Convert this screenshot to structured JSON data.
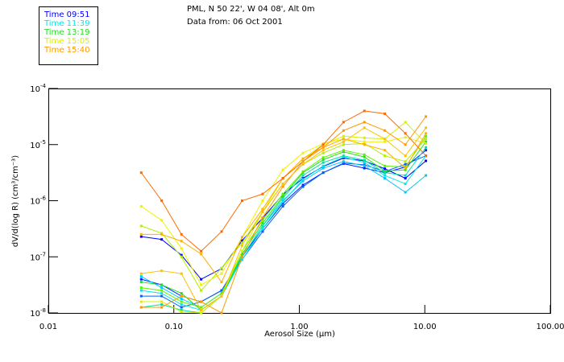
{
  "header": {
    "title": "PML, N 50 22', W 04 08', Alt 0m",
    "subtitle": "Data from: 06 Oct 2001"
  },
  "legend": [
    {
      "label": "Time 09:51",
      "color": "#0000ff"
    },
    {
      "label": "Time 11:39",
      "color": "#00e8e8"
    },
    {
      "label": "Time 13:19",
      "color": "#20e020"
    },
    {
      "label": "Time 15:05",
      "color": "#d8f000"
    },
    {
      "label": "Time 15:40",
      "color": "#ff9900"
    }
  ],
  "chart_data": {
    "type": "line",
    "xscale": "log",
    "yscale": "log",
    "xlabel": "Aerosol Size (µm)",
    "ylabel": "dV/d(log R) (cm³/cm⁻³)",
    "xlim": [
      0.01,
      100
    ],
    "ylim": [
      1e-08,
      0.0001
    ],
    "xticks": [
      "0.01",
      "0.10",
      "1.00",
      "10.00",
      "100.00"
    ],
    "yticks": [
      {
        "base": "10",
        "exp": "-4"
      },
      {
        "base": "10",
        "exp": "-5"
      },
      {
        "base": "10",
        "exp": "-6"
      },
      {
        "base": "10",
        "exp": "-7"
      },
      {
        "base": "10",
        "exp": "-8"
      }
    ],
    "x": [
      0.055,
      0.08,
      0.115,
      0.165,
      0.24,
      0.35,
      0.51,
      0.74,
      1.07,
      1.55,
      2.25,
      3.3,
      4.8,
      7.0,
      10.2
    ],
    "series_note": "values given as log10(dV/dlogR)",
    "series": [
      {
        "color": "#0000ff",
        "log10_values": [
          -6.64,
          -6.69,
          -6.97,
          -7.4,
          -7.21,
          -6.71,
          -6.31,
          -5.89,
          -5.6,
          -5.39,
          -5.24,
          -5.29,
          -5.43,
          -5.6,
          -5.29
        ]
      },
      {
        "color": "#0020ff",
        "log10_values": [
          -7.4,
          -7.5,
          -7.7,
          -7.8,
          -7.6,
          -7.0,
          -6.5,
          -6.05,
          -5.72,
          -5.5,
          -5.34,
          -5.42,
          -5.5,
          -5.4,
          -5.1
        ]
      },
      {
        "color": "#0060ff",
        "log10_values": [
          -7.7,
          -7.7,
          -7.9,
          -7.8,
          -7.6,
          -7.05,
          -6.55,
          -6.1,
          -5.75,
          -5.5,
          -5.33,
          -5.36,
          -5.48,
          -5.35,
          -5.2
        ]
      },
      {
        "color": "#00c8ff",
        "log10_values": [
          -7.35,
          -7.55,
          -7.75,
          -7.9,
          -7.65,
          -7.0,
          -6.45,
          -6.0,
          -5.65,
          -5.42,
          -5.3,
          -5.38,
          -5.6,
          -5.85,
          -5.55
        ]
      },
      {
        "color": "#00e8e8",
        "log10_values": [
          -7.6,
          -7.65,
          -7.85,
          -7.95,
          -7.7,
          -7.05,
          -6.5,
          -6.02,
          -5.62,
          -5.38,
          -5.22,
          -5.32,
          -5.55,
          -5.7,
          -5.2
        ]
      },
      {
        "color": "#00e0a0",
        "log10_values": [
          -7.9,
          -7.85,
          -7.95,
          -8.0,
          -7.7,
          -7.0,
          -6.45,
          -5.95,
          -5.55,
          -5.32,
          -5.2,
          -5.28,
          -5.5,
          -5.55,
          -5.05
        ]
      },
      {
        "color": "#20e020",
        "log10_values": [
          -7.45,
          -7.5,
          -7.65,
          -7.95,
          -7.7,
          -6.95,
          -6.4,
          -5.92,
          -5.5,
          -5.27,
          -5.13,
          -5.22,
          -5.47,
          -5.45,
          -4.95
        ]
      },
      {
        "color": "#60f000",
        "log10_values": [
          -7.55,
          -7.6,
          -7.8,
          -7.9,
          -7.65,
          -6.9,
          -6.35,
          -5.88,
          -5.48,
          -5.23,
          -5.1,
          -5.18,
          -5.38,
          -5.4,
          -4.85
        ]
      },
      {
        "color": "#b0f000",
        "log10_values": [
          -6.45,
          -6.58,
          -7.0,
          -7.6,
          -7.2,
          -6.75,
          -6.2,
          -5.7,
          -5.35,
          -5.15,
          -5.0,
          -4.98,
          -5.2,
          -5.3,
          -4.9
        ]
      },
      {
        "color": "#f0f000",
        "log10_values": [
          -6.1,
          -6.35,
          -6.85,
          -7.5,
          -7.3,
          -6.65,
          -6.0,
          -5.45,
          -5.15,
          -4.98,
          -4.9,
          -4.95,
          -4.95,
          -4.87,
          -4.98
        ]
      },
      {
        "color": "#d8f000",
        "log10_values": [
          -7.8,
          -7.8,
          -7.98,
          -8.0,
          -7.7,
          -6.9,
          -6.2,
          -5.6,
          -5.25,
          -5.0,
          -4.85,
          -4.88,
          -4.9,
          -4.6,
          -4.98
        ]
      },
      {
        "color": "#ffb000",
        "log10_values": [
          -6.6,
          -6.6,
          -6.72,
          -6.95,
          -7.45,
          -6.65,
          -6.15,
          -5.6,
          -5.25,
          -5.05,
          -4.9,
          -5.0,
          -5.1,
          -5.42,
          -4.8
        ]
      },
      {
        "color": "#ff6a00",
        "log10_values": [
          -5.5,
          -6.0,
          -6.6,
          -6.9,
          -6.55,
          -6.0,
          -5.88,
          -5.6,
          -5.3,
          -5.0,
          -4.6,
          -4.4,
          -4.45,
          -4.8,
          -5.2
        ]
      },
      {
        "color": "#ff9900",
        "log10_values": [
          -7.9,
          -7.9,
          -7.7,
          -7.8,
          -8.0,
          -7.0,
          -6.3,
          -5.75,
          -5.3,
          -5.05,
          -4.75,
          -4.6,
          -4.75,
          -5.0,
          -4.5
        ]
      },
      {
        "color": "#ffc000",
        "log10_values": [
          -7.3,
          -7.25,
          -7.3,
          -7.95,
          -7.7,
          -6.8,
          -6.2,
          -5.7,
          -5.35,
          -5.1,
          -4.95,
          -4.7,
          -4.9,
          -5.2,
          -4.7
        ]
      }
    ]
  }
}
